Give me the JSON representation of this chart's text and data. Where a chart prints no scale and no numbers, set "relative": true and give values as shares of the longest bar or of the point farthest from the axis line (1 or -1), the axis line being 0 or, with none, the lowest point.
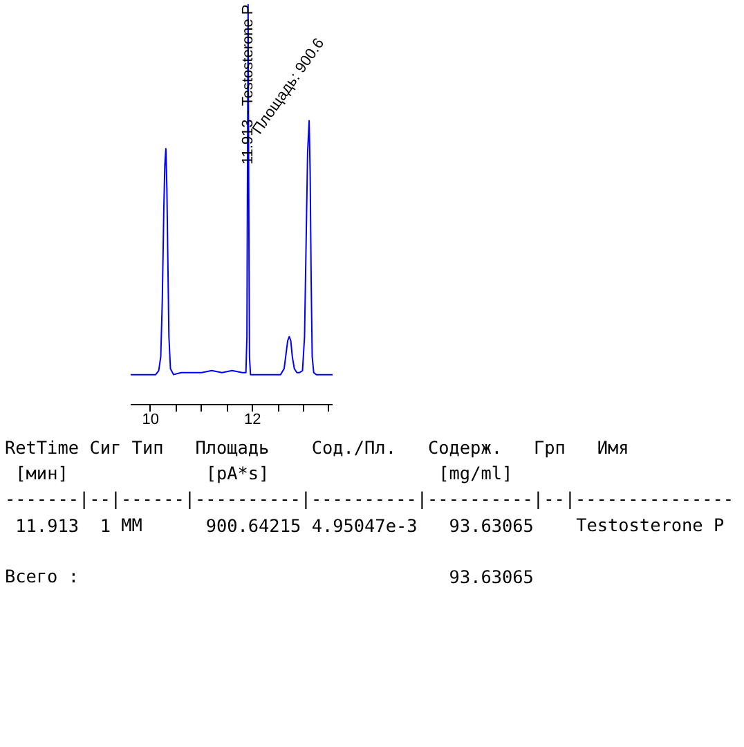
{
  "chart_data": {
    "type": "line",
    "relative": true,
    "color": "#0000ff",
    "xlim": [
      9.61,
      13.57
    ],
    "xticks": [
      10,
      {
        "value": 10.5,
        "label": null
      },
      {
        "value": 11,
        "label": null
      },
      {
        "value": 11.5,
        "label": null
      },
      12,
      {
        "value": 12.5,
        "label": null
      },
      {
        "value": 13,
        "label": null
      },
      {
        "value": 13.5,
        "label": null
      }
    ],
    "x": [
      9.61,
      10.1,
      10.16,
      10.2,
      10.23,
      10.26,
      10.28,
      10.3,
      10.32,
      10.34,
      10.36,
      10.39,
      10.45,
      10.6,
      10.8,
      11.0,
      11.2,
      11.4,
      11.6,
      11.8,
      11.87,
      11.89,
      11.9,
      11.913,
      11.925,
      11.94,
      11.96,
      12.0,
      12.3,
      12.55,
      12.62,
      12.66,
      12.69,
      12.72,
      12.75,
      12.78,
      12.82,
      12.87,
      12.92,
      12.98,
      13.02,
      13.05,
      13.08,
      13.11,
      13.13,
      13.15,
      13.17,
      13.2,
      13.25,
      13.57
    ],
    "values": [
      0.075,
      0.075,
      0.085,
      0.12,
      0.26,
      0.49,
      0.6,
      0.64,
      0.54,
      0.35,
      0.17,
      0.09,
      0.075,
      0.08,
      0.08,
      0.08,
      0.085,
      0.08,
      0.085,
      0.08,
      0.08,
      0.17,
      0.54,
      1,
      0.54,
      0.12,
      0.075,
      0.075,
      0.075,
      0.075,
      0.09,
      0.13,
      0.16,
      0.17,
      0.16,
      0.12,
      0.09,
      0.08,
      0.08,
      0.085,
      0.17,
      0.4,
      0.63,
      0.71,
      0.58,
      0.31,
      0.12,
      0.08,
      0.075,
      0.075
    ],
    "annotations": [
      {
        "text": "11.913 - Testosterone P",
        "x": 11.913,
        "y": 0.6
      },
      {
        "text": "Площадь: 900.6",
        "x": 11.913,
        "y": 0.68
      },
      "RetTime Сиг Тип   Площадь    Сод./Пл.   Содерж.   Грп   Имя",
      " [мин]             [pA*s]                [mg/ml]",
      "-------|--|------|----------|----------|----------|--|---------------",
      " 11.913  1 MM      900.64215 4.95047e-3   93.63065    Testosterone P",
      "Всего :                                   93.63065"
    ]
  }
}
